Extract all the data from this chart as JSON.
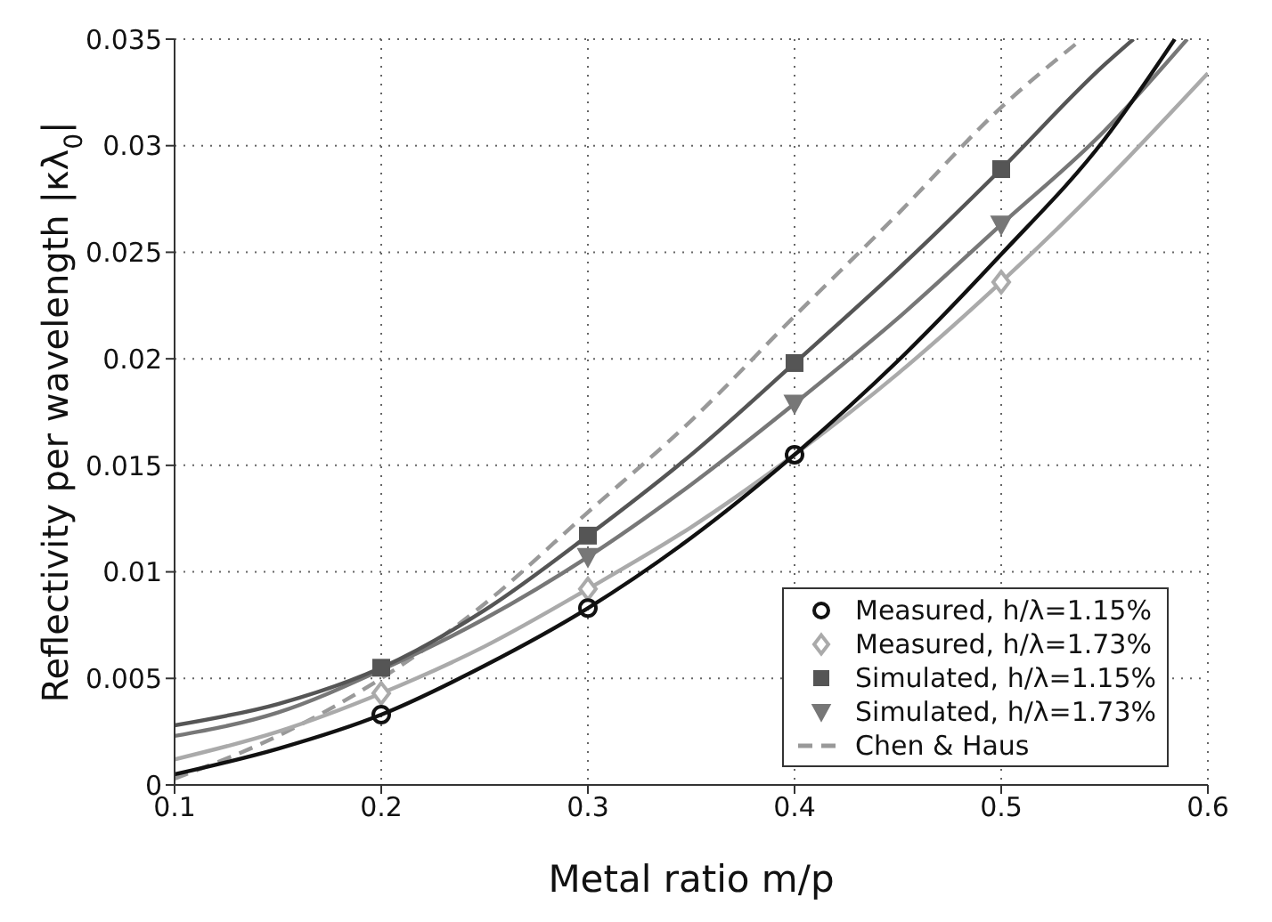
{
  "chart_data": {
    "type": "line",
    "xlabel": "Metal ratio m/p",
    "ylabel": "Reflectivity per wavelength  |κλ$_{0}$|",
    "xlim": [
      0.1,
      0.6
    ],
    "xticks": [
      0.1,
      0.2,
      0.3,
      0.4,
      0.5,
      0.6
    ],
    "ylim": [
      0,
      0.035
    ],
    "yticks": [
      0,
      0.005,
      0.01,
      0.015,
      0.02,
      0.025,
      0.03,
      0.035
    ],
    "grid": true,
    "legend": "bottom right",
    "series": [
      {
        "type": "line",
        "color": "#111111",
        "marker": "none",
        "line_style": "solid",
        "x": [
          0.1,
          0.15,
          0.2,
          0.25,
          0.3,
          0.35,
          0.4,
          0.45,
          0.5,
          0.55,
          0.584
        ],
        "values": [
          0.0005,
          0.0017,
          0.0033,
          0.0056,
          0.0083,
          0.0116,
          0.0155,
          0.0199,
          0.0249,
          0.0303,
          0.035
        ]
      },
      {
        "type": "line",
        "color": "#aaaaaa",
        "marker": "none",
        "line_style": "solid",
        "x": [
          0.1,
          0.15,
          0.2,
          0.25,
          0.3,
          0.35,
          0.4,
          0.45,
          0.5,
          0.55,
          0.6
        ],
        "values": [
          0.0012,
          0.0025,
          0.0043,
          0.0065,
          0.0092,
          0.0121,
          0.0155,
          0.0193,
          0.0236,
          0.0283,
          0.0334
        ]
      },
      {
        "type": "line",
        "color": "#555555",
        "marker": "none",
        "line_style": "solid",
        "x": [
          0.1,
          0.15,
          0.2,
          0.25,
          0.3,
          0.35,
          0.4,
          0.45,
          0.5,
          0.55,
          0.564
        ],
        "values": [
          0.0028,
          0.0038,
          0.0055,
          0.0082,
          0.0117,
          0.0155,
          0.0198,
          0.0242,
          0.0289,
          0.0338,
          0.035
        ]
      },
      {
        "type": "line",
        "color": "#777777",
        "marker": "none",
        "line_style": "solid",
        "x": [
          0.1,
          0.15,
          0.2,
          0.25,
          0.3,
          0.35,
          0.4,
          0.45,
          0.5,
          0.55,
          0.59
        ],
        "values": [
          0.0023,
          0.0034,
          0.0054,
          0.0078,
          0.0107,
          0.0141,
          0.0179,
          0.0219,
          0.0263,
          0.0307,
          0.035
        ]
      },
      {
        "type": "scatter",
        "name": "Measured, h/λ=1.15%",
        "color": "#111111",
        "marker": "circle",
        "x": [
          0.2,
          0.3,
          0.4
        ],
        "values": [
          0.0033,
          0.0083,
          0.0155
        ]
      },
      {
        "type": "scatter",
        "name": "Measured, h/λ=1.73%",
        "color": "#aaaaaa",
        "marker": "diamond",
        "x": [
          0.2,
          0.3,
          0.5
        ],
        "values": [
          0.0043,
          0.0092,
          0.0236
        ]
      },
      {
        "type": "scatter",
        "name": "Simulated, h/λ=1.15%",
        "color": "#555555",
        "marker": "square",
        "x": [
          0.2,
          0.3,
          0.4,
          0.5
        ],
        "values": [
          0.0055,
          0.0117,
          0.0198,
          0.0289
        ]
      },
      {
        "type": "scatter",
        "name": "Simulated, h/λ=1.73%",
        "color": "#777777",
        "marker": "triangle",
        "x": [
          0.3,
          0.4,
          0.5
        ],
        "values": [
          0.0107,
          0.0179,
          0.0263
        ]
      },
      {
        "type": "line",
        "name": "Chen & Haus",
        "color": "#999999",
        "marker": "none",
        "line_style": "dashed",
        "x": [
          0.1,
          0.15,
          0.2,
          0.25,
          0.3,
          0.35,
          0.4,
          0.45,
          0.5,
          0.539
        ],
        "values": [
          0.0003,
          0.0023,
          0.005,
          0.0085,
          0.0128,
          0.0171,
          0.022,
          0.0268,
          0.0318,
          0.035
        ]
      }
    ]
  }
}
